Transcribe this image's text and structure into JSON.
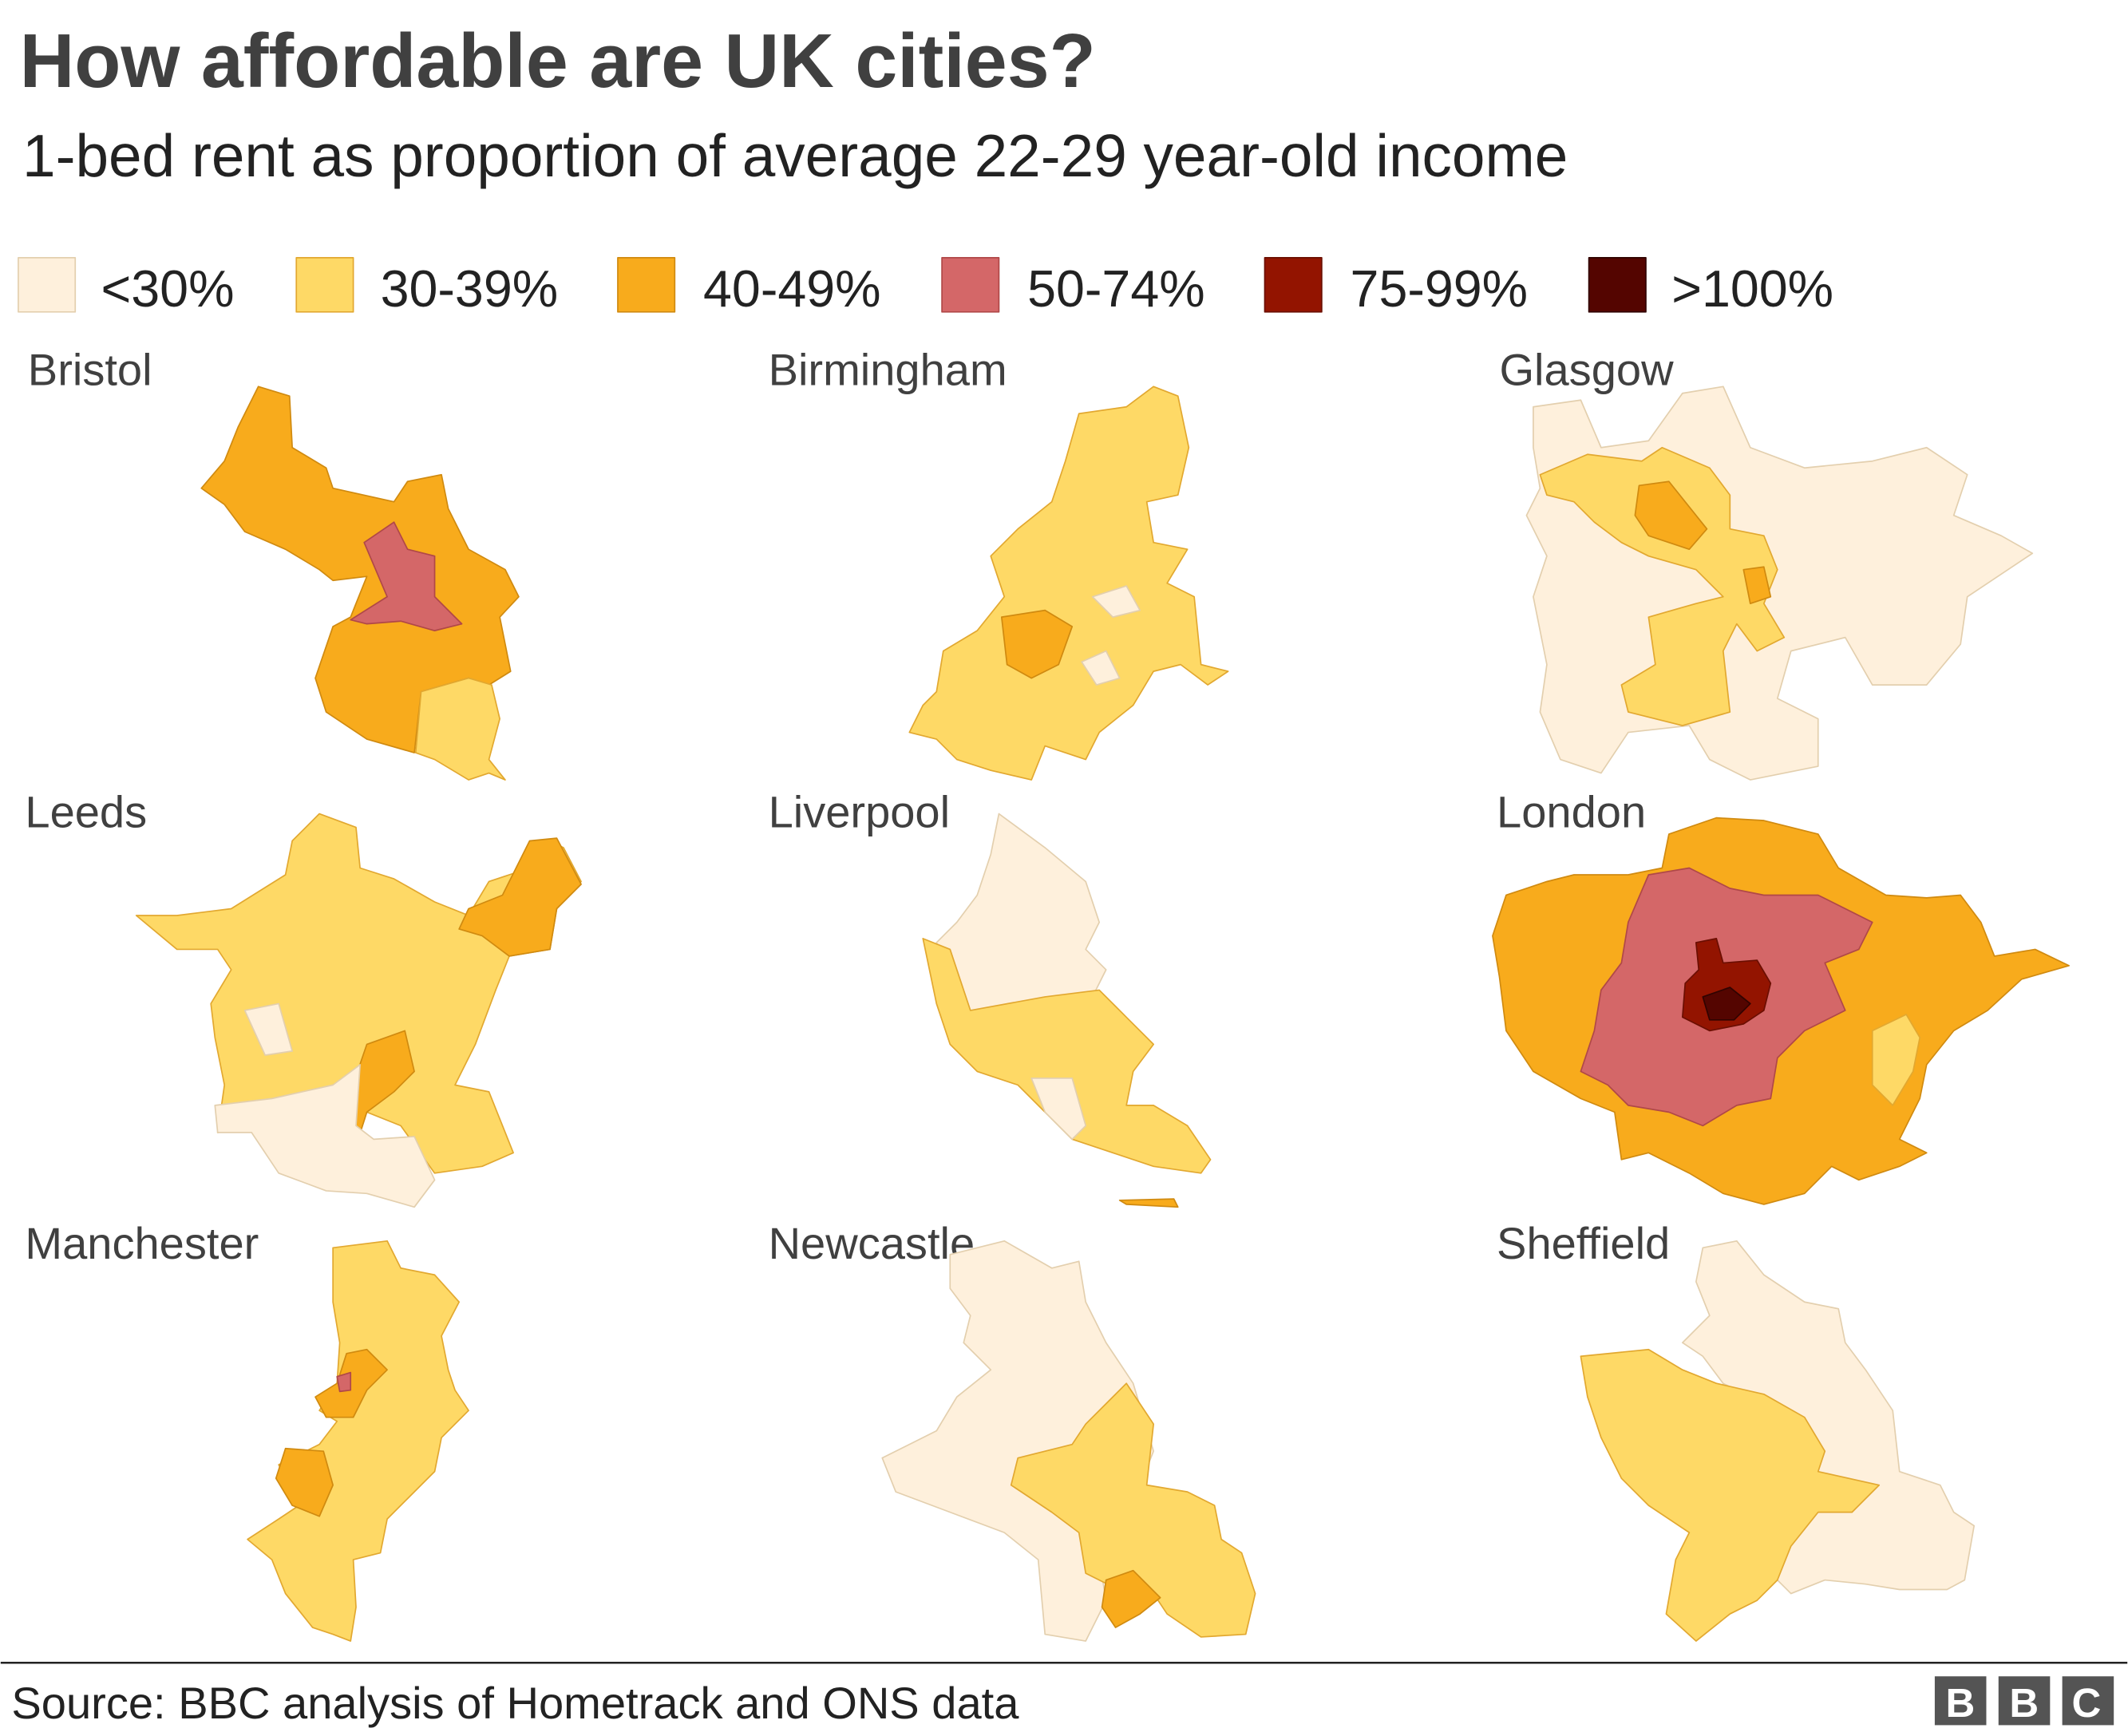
{
  "title": "How affordable are UK cities?",
  "subtitle": "1-bed rent as proportion of average 22-29 year-old income",
  "legend": [
    {
      "label": "<30%",
      "color": "#fef0dc"
    },
    {
      "label": "30-39%",
      "color": "#fed966"
    },
    {
      "label": "40-49%",
      "color": "#f8ab1c"
    },
    {
      "label": "50-74%",
      "color": "#d46768"
    },
    {
      "label": "75-99%",
      "color": "#931400"
    },
    {
      "label": ">100%",
      "color": "#540500"
    }
  ],
  "cities": [
    "Bristol",
    "Birmingham",
    "Glasgow",
    "Leeds",
    "Liverpool",
    "London",
    "Manchester",
    "Newcastle",
    "Sheffield"
  ],
  "source": "Source: BBC analysis of Hometrack and ONS data",
  "logo": "BBC"
}
